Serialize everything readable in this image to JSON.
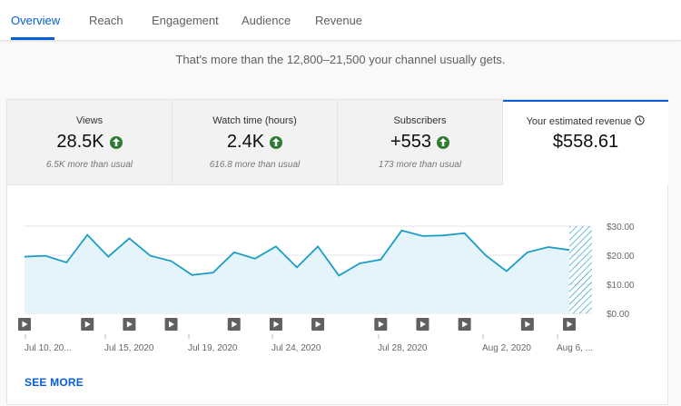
{
  "tabs": [
    {
      "label": "Overview",
      "active": true
    },
    {
      "label": "Reach",
      "active": false
    },
    {
      "label": "Engagement",
      "active": false
    },
    {
      "label": "Audience",
      "active": false
    },
    {
      "label": "Revenue",
      "active": false
    }
  ],
  "summary_text": "That's more than the 12,800–21,500 your channel usually gets.",
  "metrics": [
    {
      "title": "Views",
      "value": "28.5K",
      "sub": "6.5K more than usual",
      "trend": "up"
    },
    {
      "title": "Watch time (hours)",
      "value": "2.4K",
      "sub": "616.8 more than usual",
      "trend": "up"
    },
    {
      "title": "Subscribers",
      "value": "+553",
      "sub": "173 more than usual",
      "trend": "up"
    },
    {
      "title": "Your estimated revenue",
      "value": "$558.61",
      "selected": true
    }
  ],
  "colors": {
    "accent": "#065fd4",
    "line": "#1c9dc4",
    "area": "#e4f4fa",
    "up": "#2e7d32"
  },
  "chart_data": {
    "type": "area",
    "ylim": [
      0,
      30
    ],
    "yticks": [
      "$0.00",
      "$10.00",
      "$20.00",
      "$30.00"
    ],
    "xtick_labels": [
      "Jul 10, 20...",
      "Jul 15, 2020",
      "Jul 19, 2020",
      "Jul 24, 2020",
      "Jul 28, 2020",
      "Aug 2, 2020",
      "Aug 6, ..."
    ],
    "series": [
      {
        "values": [
          19.5,
          19.8,
          17.5,
          27.0,
          19.5,
          25.8,
          19.8,
          18.0,
          13.2,
          14.0,
          21.0,
          18.8,
          23.0,
          15.8,
          23.0,
          13.0,
          17.2,
          18.5,
          28.5,
          26.6,
          26.8,
          27.6,
          20.0,
          14.5,
          21.0,
          22.8,
          21.8
        ]
      }
    ],
    "video_markers": [
      0,
      3,
      5,
      7,
      10,
      12,
      14,
      17,
      19,
      21,
      24,
      26
    ],
    "partial_last_day": true,
    "grid": true
  },
  "see_more": "SEE MORE"
}
